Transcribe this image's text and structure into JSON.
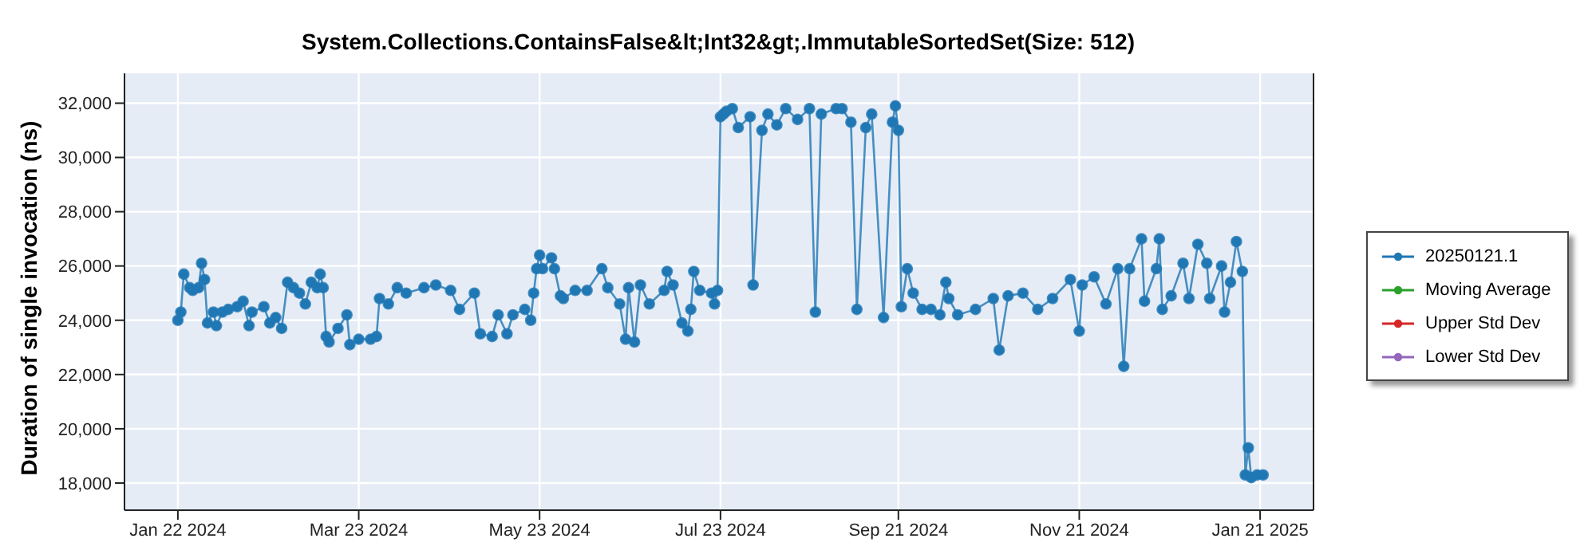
{
  "chart_data": {
    "type": "line",
    "title": "System.Collections.ContainsFalse&lt;Int32&gt;.ImmutableSortedSet(Size: 512)",
    "ylabel": "Duration of single invocation (ns)",
    "x": [
      "2024-01-22",
      "2024-01-23",
      "2024-01-24",
      "2024-01-26",
      "2024-01-27",
      "2024-01-29",
      "2024-01-30",
      "2024-01-31",
      "2024-02-01",
      "2024-02-03",
      "2024-02-04",
      "2024-02-06",
      "2024-02-08",
      "2024-02-11",
      "2024-02-13",
      "2024-02-15",
      "2024-02-16",
      "2024-02-20",
      "2024-02-22",
      "2024-02-24",
      "2024-02-26",
      "2024-02-28",
      "2024-03-01",
      "2024-03-03",
      "2024-03-05",
      "2024-03-07",
      "2024-03-09",
      "2024-03-10",
      "2024-03-11",
      "2024-03-12",
      "2024-03-13",
      "2024-03-16",
      "2024-03-19",
      "2024-03-20",
      "2024-03-23",
      "2024-03-27",
      "2024-03-29",
      "2024-03-30",
      "2024-04-02",
      "2024-04-05",
      "2024-04-08",
      "2024-04-14",
      "2024-04-18",
      "2024-04-23",
      "2024-04-26",
      "2024-05-01",
      "2024-05-03",
      "2024-05-07",
      "2024-05-09",
      "2024-05-12",
      "2024-05-14",
      "2024-05-18",
      "2024-05-20",
      "2024-05-21",
      "2024-05-22",
      "2024-05-23",
      "2024-05-24",
      "2024-05-27",
      "2024-05-28",
      "2024-05-30",
      "2024-05-31",
      "2024-06-04",
      "2024-06-08",
      "2024-06-13",
      "2024-06-15",
      "2024-06-19",
      "2024-06-21",
      "2024-06-22",
      "2024-06-24",
      "2024-06-26",
      "2024-06-29",
      "2024-07-04",
      "2024-07-05",
      "2024-07-07",
      "2024-07-10",
      "2024-07-12",
      "2024-07-13",
      "2024-07-14",
      "2024-07-16",
      "2024-07-20",
      "2024-07-21",
      "2024-07-22",
      "2024-07-23",
      "2024-07-24",
      "2024-07-25",
      "2024-07-27",
      "2024-07-29",
      "2024-08-02",
      "2024-08-03",
      "2024-08-06",
      "2024-08-08",
      "2024-08-11",
      "2024-08-14",
      "2024-08-18",
      "2024-08-22",
      "2024-08-24",
      "2024-08-26",
      "2024-08-31",
      "2024-09-02",
      "2024-09-05",
      "2024-09-07",
      "2024-09-10",
      "2024-09-12",
      "2024-09-16",
      "2024-09-19",
      "2024-09-20",
      "2024-09-21",
      "2024-09-22",
      "2024-09-24",
      "2024-09-26",
      "2024-09-29",
      "2024-10-02",
      "2024-10-05",
      "2024-10-07",
      "2024-10-08",
      "2024-10-11",
      "2024-10-17",
      "2024-10-23",
      "2024-10-25",
      "2024-10-28",
      "2024-11-02",
      "2024-11-07",
      "2024-11-12",
      "2024-11-18",
      "2024-11-21",
      "2024-11-22",
      "2024-11-26",
      "2024-11-30",
      "2024-12-04",
      "2024-12-06",
      "2024-12-08",
      "2024-12-12",
      "2024-12-13",
      "2024-12-17",
      "2024-12-18",
      "2024-12-19",
      "2024-12-22",
      "2024-12-26",
      "2024-12-28",
      "2024-12-31",
      "2025-01-03",
      "2025-01-04",
      "2025-01-08",
      "2025-01-09",
      "2025-01-11",
      "2025-01-13",
      "2025-01-15",
      "2025-01-16",
      "2025-01-17",
      "2025-01-18",
      "2025-01-20",
      "2025-01-22"
    ],
    "series": [
      {
        "name": "20250121.1",
        "color": "#1f77b4",
        "values": [
          24000,
          24300,
          25700,
          25200,
          25100,
          25200,
          26100,
          25500,
          23900,
          24300,
          23800,
          24300,
          24400,
          24500,
          24700,
          23800,
          24300,
          24500,
          23900,
          24100,
          23700,
          25400,
          25200,
          25000,
          24600,
          25400,
          25200,
          25700,
          25200,
          23400,
          23200,
          23700,
          24200,
          23100,
          23300,
          23300,
          23400,
          24800,
          24600,
          25200,
          25000,
          25200,
          25300,
          25100,
          24400,
          25000,
          23500,
          23400,
          24200,
          23500,
          24200,
          24400,
          24000,
          25000,
          25900,
          26400,
          25900,
          26300,
          25900,
          24900,
          24800,
          25100,
          25100,
          25900,
          25200,
          24600,
          23300,
          25200,
          23200,
          25300,
          24600,
          25100,
          25800,
          25300,
          23900,
          23600,
          24400,
          25800,
          25100,
          25000,
          24600,
          25100,
          31500,
          31600,
          31700,
          31800,
          31100,
          31500,
          25300,
          31000,
          31600,
          31200,
          31800,
          31400,
          31800,
          24300,
          31600,
          31800,
          31800,
          31300,
          24400,
          31100,
          31600,
          24100,
          31300,
          31900,
          31000,
          24500,
          25900,
          25000,
          24400,
          24400,
          24200,
          25400,
          24800,
          24200,
          24400,
          24800,
          22900,
          24900,
          25000,
          24400,
          24800,
          25500,
          23600,
          25300,
          25600,
          24600,
          25900,
          22300,
          25900,
          27000,
          24700,
          25900,
          27000,
          24400,
          24900,
          26100,
          24800,
          26800,
          26100,
          24800,
          26000,
          24300,
          25400,
          26900,
          25800,
          18300,
          19300,
          18200,
          18300,
          18300
        ]
      },
      {
        "name": "Moving Average",
        "color": "#2ca02c",
        "values": [
          null,
          null,
          null,
          null,
          null,
          null,
          null,
          null,
          null,
          null,
          null,
          null,
          null,
          null,
          null,
          null,
          null,
          null,
          null,
          null,
          null,
          null,
          null,
          null,
          null,
          null,
          null,
          null,
          null,
          null,
          null,
          null,
          null,
          null,
          null,
          null,
          null,
          null,
          null,
          null,
          null,
          null,
          null,
          null,
          null,
          null,
          null,
          null,
          null,
          null,
          null,
          null,
          null,
          null,
          null,
          null,
          null,
          null,
          null,
          null,
          null,
          null,
          null,
          null,
          null,
          null,
          null,
          null,
          null,
          null,
          null,
          null,
          null,
          null,
          null,
          null,
          null,
          null,
          null,
          null,
          null,
          null,
          null,
          null,
          null,
          null,
          null,
          null,
          null,
          null,
          null,
          null,
          null,
          null,
          null,
          null,
          null,
          null,
          null,
          null,
          null,
          null,
          null,
          null,
          null,
          null,
          null,
          null,
          null,
          null,
          null,
          null,
          null,
          null,
          null,
          null,
          null,
          null,
          null,
          null,
          null,
          null,
          null,
          null,
          null,
          null,
          null,
          null,
          null,
          null,
          null,
          null,
          null,
          null,
          null,
          null,
          null,
          null,
          null,
          null,
          null,
          null,
          null,
          null,
          null,
          null,
          null,
          null,
          null,
          null,
          null,
          null
        ]
      },
      {
        "name": "Upper Std Dev",
        "color": "#d62728",
        "values": [
          null,
          null,
          null,
          null,
          null,
          null,
          null,
          null,
          null,
          null,
          null,
          null,
          null,
          null,
          null,
          null,
          null,
          null,
          null,
          null,
          null,
          null,
          null,
          null,
          null,
          null,
          null,
          null,
          null,
          null,
          null,
          null,
          null,
          null,
          null,
          null,
          null,
          null,
          null,
          null,
          null,
          null,
          null,
          null,
          null,
          null,
          null,
          null,
          null,
          null,
          null,
          null,
          null,
          null,
          null,
          null,
          null,
          null,
          null,
          null,
          null,
          null,
          null,
          null,
          null,
          null,
          null,
          null,
          null,
          null,
          null,
          null,
          null,
          null,
          null,
          null,
          null,
          null,
          null,
          null,
          null,
          null,
          null,
          null,
          null,
          null,
          null,
          null,
          null,
          null,
          null,
          null,
          null,
          null,
          null,
          null,
          null,
          null,
          null,
          null,
          null,
          null,
          null,
          null,
          null,
          null,
          null,
          null,
          null,
          null,
          null,
          null,
          null,
          null,
          null,
          null,
          null,
          null,
          null,
          null,
          null,
          null,
          null,
          null,
          null,
          null,
          null,
          null,
          null,
          null,
          null,
          null,
          null,
          null,
          null,
          null,
          null,
          null,
          null,
          null,
          null,
          null,
          null,
          null,
          null,
          null,
          null,
          null,
          null,
          null,
          null,
          null
        ]
      },
      {
        "name": "Lower Std Dev",
        "color": "#9467bd",
        "values": [
          null,
          null,
          null,
          null,
          null,
          null,
          null,
          null,
          null,
          null,
          null,
          null,
          null,
          null,
          null,
          null,
          null,
          null,
          null,
          null,
          null,
          null,
          null,
          null,
          null,
          null,
          null,
          null,
          null,
          null,
          null,
          null,
          null,
          null,
          null,
          null,
          null,
          null,
          null,
          null,
          null,
          null,
          null,
          null,
          null,
          null,
          null,
          null,
          null,
          null,
          null,
          null,
          null,
          null,
          null,
          null,
          null,
          null,
          null,
          null,
          null,
          null,
          null,
          null,
          null,
          null,
          null,
          null,
          null,
          null,
          null,
          null,
          null,
          null,
          null,
          null,
          null,
          null,
          null,
          null,
          null,
          null,
          null,
          null,
          null,
          null,
          null,
          null,
          null,
          null,
          null,
          null,
          null,
          null,
          null,
          null,
          null,
          null,
          null,
          null,
          null,
          null,
          null,
          null,
          null,
          null,
          null,
          null,
          null,
          null,
          null,
          null,
          null,
          null,
          null,
          null,
          null,
          null,
          null,
          null,
          null,
          null,
          null,
          null,
          null,
          null,
          null,
          null,
          null,
          null,
          null,
          null,
          null,
          null,
          null,
          null,
          null,
          null,
          null,
          null,
          null,
          null,
          null,
          null,
          null,
          null,
          null,
          null,
          null,
          null,
          null,
          null
        ]
      }
    ],
    "xlim": [
      "2024-01-04",
      "2025-02-08"
    ],
    "xticks": [
      {
        "value": "2024-01-22",
        "label": "Jan 22 2024"
      },
      {
        "value": "2024-03-23",
        "label": "Mar 23 2024"
      },
      {
        "value": "2024-05-23",
        "label": "May 23 2024"
      },
      {
        "value": "2024-07-23",
        "label": "Jul 23 2024"
      },
      {
        "value": "2024-09-21",
        "label": "Sep 21 2024"
      },
      {
        "value": "2024-11-21",
        "label": "Nov 21 2024"
      },
      {
        "value": "2025-01-21",
        "label": "Jan 21 2025"
      }
    ],
    "ylim": [
      17000,
      33100
    ],
    "yticks": [
      {
        "value": 18000,
        "label": "18,000"
      },
      {
        "value": 20000,
        "label": "20,000"
      },
      {
        "value": 22000,
        "label": "22,000"
      },
      {
        "value": 24000,
        "label": "24,000"
      },
      {
        "value": 26000,
        "label": "26,000"
      },
      {
        "value": 28000,
        "label": "28,000"
      },
      {
        "value": 30000,
        "label": "30,000"
      },
      {
        "value": 32000,
        "label": "32,000"
      }
    ],
    "grid": true,
    "legend": "right",
    "marker": "circle",
    "line_style": "solid"
  }
}
